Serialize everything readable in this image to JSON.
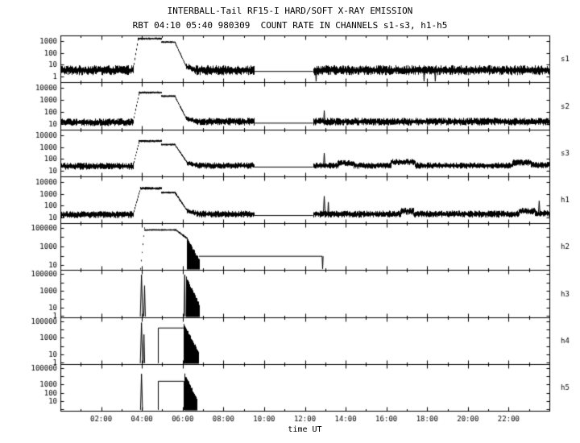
{
  "colors": {
    "background": "#ffffff",
    "ink": "#000000"
  },
  "chart_data": {
    "type": "line",
    "title": "INTERBALL-Tail RF15-I HARD/SOFT X-RAY EMISSION",
    "subtitle": "RBT 04:10 05:40 980309  COUNT RATE IN CHANNELS s1-s3, h1-h5",
    "y_scale": "log",
    "x_axis": {
      "label": "time UT",
      "range_hours": [
        0,
        24
      ],
      "ticks": [
        {
          "t": 2,
          "label": "02:00"
        },
        {
          "t": 4,
          "label": "04:00"
        },
        {
          "t": 6,
          "label": "06:00"
        },
        {
          "t": 8,
          "label": "08:00"
        },
        {
          "t": 10,
          "label": "10:00"
        },
        {
          "t": 12,
          "label": "12:00"
        },
        {
          "t": 14,
          "label": "14:00"
        },
        {
          "t": 16,
          "label": "16:00"
        },
        {
          "t": 18,
          "label": "18:00"
        },
        {
          "t": 20,
          "label": "20:00"
        },
        {
          "t": 22,
          "label": "22:00"
        }
      ]
    },
    "panels": [
      {
        "label": "s1",
        "ylog_range": [
          -0.5,
          3.5
        ],
        "yticks": [
          {
            "v": 1000,
            "label": "1000"
          },
          {
            "v": 100,
            "label": "100"
          },
          {
            "v": 10,
            "label": "10"
          },
          {
            "v": 1,
            "label": "1"
          }
        ],
        "segments": [
          {
            "mode": "noisy",
            "t0": 0,
            "t1": 3.55,
            "level": 0.55,
            "amp": 0.4
          },
          {
            "mode": "noisy",
            "t0": 3.55,
            "t1": 3.8,
            "level": 0.6,
            "level1": 3.2,
            "amp": 0.08
          },
          {
            "mode": "noisy",
            "t0": 3.8,
            "t1": 4.95,
            "level": 3.25,
            "amp": 0.07
          },
          {
            "mode": "noisy",
            "t0": 4.95,
            "t1": 5.6,
            "level": 2.95,
            "amp": 0.06
          },
          {
            "mode": "noisy",
            "t0": 5.6,
            "t1": 6.15,
            "level": 2.95,
            "level1": 0.9,
            "amp": 0.08
          },
          {
            "mode": "noisy",
            "t0": 6.15,
            "t1": 6.6,
            "level": 0.85,
            "level1": 0.6,
            "amp": 0.3
          },
          {
            "mode": "noisy",
            "t0": 6.6,
            "t1": 9.5,
            "level": 0.55,
            "amp": 0.4
          },
          {
            "mode": "line",
            "t0": 9.5,
            "t1": 12.4,
            "level": 0.42
          },
          {
            "mode": "noisy",
            "t0": 12.4,
            "t1": 24,
            "level": 0.55,
            "amp": 0.4
          }
        ],
        "spikes": [
          {
            "t": 12.55,
            "base": 0.5,
            "peak": -0.45,
            "w": 0.06
          },
          {
            "t": 17.85,
            "base": 0.5,
            "peak": -0.45,
            "w": 0.06
          },
          {
            "t": 18.4,
            "base": 0.5,
            "peak": -0.45,
            "w": 0.06
          }
        ]
      },
      {
        "label": "s2",
        "ylog_range": [
          0.5,
          4.5
        ],
        "yticks": [
          {
            "v": 10000,
            "label": "10000"
          },
          {
            "v": 1000,
            "label": "1000"
          },
          {
            "v": 100,
            "label": "100"
          },
          {
            "v": 10,
            "label": "10"
          }
        ],
        "segments": [
          {
            "mode": "noisy",
            "t0": 0,
            "t1": 3.55,
            "level": 1.15,
            "amp": 0.3
          },
          {
            "mode": "noisy",
            "t0": 3.55,
            "t1": 3.85,
            "level": 1.2,
            "level1": 3.6,
            "amp": 0.08
          },
          {
            "mode": "noisy",
            "t0": 3.85,
            "t1": 4.95,
            "level": 3.65,
            "amp": 0.07
          },
          {
            "mode": "noisy",
            "t0": 4.95,
            "t1": 5.6,
            "level": 3.35,
            "amp": 0.06
          },
          {
            "mode": "noisy",
            "t0": 5.6,
            "t1": 6.15,
            "level": 3.35,
            "level1": 1.5,
            "amp": 0.08
          },
          {
            "mode": "noisy",
            "t0": 6.15,
            "t1": 6.6,
            "level": 1.45,
            "level1": 1.25,
            "amp": 0.2
          },
          {
            "mode": "noisy",
            "t0": 6.6,
            "t1": 9.5,
            "level": 1.2,
            "amp": 0.3
          },
          {
            "mode": "line",
            "t0": 9.5,
            "t1": 12.4,
            "level": 1.05
          },
          {
            "mode": "noisy",
            "t0": 12.4,
            "t1": 24,
            "level": 1.2,
            "amp": 0.3
          }
        ],
        "spikes": [
          {
            "t": 12.95,
            "base": 1.2,
            "peak": 2.1,
            "w": 0.06
          }
        ]
      },
      {
        "label": "s3",
        "ylog_range": [
          0.5,
          4.5
        ],
        "yticks": [
          {
            "v": 10000,
            "label": "10000"
          },
          {
            "v": 1000,
            "label": "1000"
          },
          {
            "v": 100,
            "label": "100"
          },
          {
            "v": 10,
            "label": "10"
          }
        ],
        "segments": [
          {
            "mode": "noisy",
            "t0": 0,
            "t1": 3.55,
            "level": 1.4,
            "amp": 0.28
          },
          {
            "mode": "noisy",
            "t0": 3.55,
            "t1": 3.85,
            "level": 1.45,
            "level1": 3.5,
            "amp": 0.08
          },
          {
            "mode": "noisy",
            "t0": 3.85,
            "t1": 4.95,
            "level": 3.55,
            "amp": 0.08
          },
          {
            "mode": "noisy",
            "t0": 4.95,
            "t1": 5.6,
            "level": 3.25,
            "amp": 0.06
          },
          {
            "mode": "noisy",
            "t0": 5.6,
            "t1": 6.2,
            "level": 3.25,
            "level1": 1.7,
            "amp": 0.08
          },
          {
            "mode": "noisy",
            "t0": 6.2,
            "t1": 6.7,
            "level": 1.65,
            "level1": 1.5,
            "amp": 0.2
          },
          {
            "mode": "noisy",
            "t0": 6.7,
            "t1": 9.5,
            "level": 1.45,
            "amp": 0.25
          },
          {
            "mode": "line",
            "t0": 9.5,
            "t1": 12.4,
            "level": 1.3
          },
          {
            "mode": "noisy",
            "t0": 12.4,
            "t1": 13.6,
            "level": 1.45,
            "amp": 0.25
          },
          {
            "mode": "noisy",
            "t0": 13.6,
            "t1": 14.4,
            "level": 1.65,
            "amp": 0.25
          },
          {
            "mode": "noisy",
            "t0": 14.4,
            "t1": 16.2,
            "level": 1.45,
            "amp": 0.25
          },
          {
            "mode": "noisy",
            "t0": 16.2,
            "t1": 17.4,
            "level": 1.75,
            "amp": 0.25
          },
          {
            "mode": "noisy",
            "t0": 17.4,
            "t1": 22.2,
            "level": 1.45,
            "amp": 0.25
          },
          {
            "mode": "noisy",
            "t0": 22.2,
            "t1": 23.1,
            "level": 1.7,
            "amp": 0.25
          },
          {
            "mode": "noisy",
            "t0": 23.1,
            "t1": 24,
            "level": 1.5,
            "amp": 0.25
          }
        ],
        "spikes": [
          {
            "t": 12.95,
            "base": 1.5,
            "peak": 2.5,
            "w": 0.07
          }
        ]
      },
      {
        "label": "h1",
        "ylog_range": [
          0.5,
          4.5
        ],
        "yticks": [
          {
            "v": 10000,
            "label": "10000"
          },
          {
            "v": 1000,
            "label": "1000"
          },
          {
            "v": 100,
            "label": "100"
          },
          {
            "v": 10,
            "label": "10"
          }
        ],
        "segments": [
          {
            "mode": "noisy",
            "t0": 0,
            "t1": 3.55,
            "level": 1.25,
            "amp": 0.28
          },
          {
            "mode": "noisy",
            "t0": 3.55,
            "t1": 3.9,
            "level": 1.3,
            "level1": 3.4,
            "amp": 0.1
          },
          {
            "mode": "noisy",
            "t0": 3.9,
            "t1": 4.95,
            "level": 3.5,
            "amp": 0.1
          },
          {
            "mode": "noisy",
            "t0": 4.95,
            "t1": 5.6,
            "level": 3.15,
            "amp": 0.07
          },
          {
            "mode": "noisy",
            "t0": 5.6,
            "t1": 6.2,
            "level": 3.15,
            "level1": 1.6,
            "amp": 0.1
          },
          {
            "mode": "noisy",
            "t0": 6.2,
            "t1": 6.7,
            "level": 1.55,
            "level1": 1.35,
            "amp": 0.2
          },
          {
            "mode": "noisy",
            "t0": 6.7,
            "t1": 9.5,
            "level": 1.3,
            "amp": 0.28
          },
          {
            "mode": "line",
            "t0": 9.5,
            "t1": 12.4,
            "level": 1.15
          },
          {
            "mode": "noisy",
            "t0": 12.4,
            "t1": 16.7,
            "level": 1.3,
            "amp": 0.28
          },
          {
            "mode": "noisy",
            "t0": 16.7,
            "t1": 17.3,
            "level": 1.55,
            "amp": 0.28
          },
          {
            "mode": "noisy",
            "t0": 17.3,
            "t1": 22.5,
            "level": 1.3,
            "amp": 0.28
          },
          {
            "mode": "noisy",
            "t0": 22.5,
            "t1": 23.3,
            "level": 1.55,
            "amp": 0.28
          },
          {
            "mode": "noisy",
            "t0": 23.3,
            "t1": 24,
            "level": 1.35,
            "amp": 0.28
          }
        ],
        "spikes": [
          {
            "t": 12.95,
            "base": 1.3,
            "peak": 2.8,
            "w": 0.09
          },
          {
            "t": 13.15,
            "base": 1.3,
            "peak": 2.3,
            "w": 0.06
          },
          {
            "t": 23.5,
            "base": 1.4,
            "peak": 2.4,
            "w": 0.07
          }
        ]
      },
      {
        "label": "h2",
        "ylog_range": [
          0.5,
          5.5
        ],
        "yticks": [
          {
            "v": 100000,
            "label": "100000"
          },
          {
            "v": 1000,
            "label": "1000"
          },
          {
            "v": 10,
            "label": "10"
          }
        ],
        "segments": [
          {
            "mode": "noisy",
            "t0": 3.93,
            "t1": 4.1,
            "level": 1.0,
            "level1": 4.75,
            "amp": 0.05
          },
          {
            "mode": "noisy",
            "t0": 4.1,
            "t1": 5.65,
            "level": 4.8,
            "amp": 0.06
          },
          {
            "mode": "noisy",
            "t0": 5.65,
            "t1": 6.2,
            "level": 4.8,
            "level1": 3.9,
            "amp": 0.1
          },
          {
            "mode": "fill",
            "t0": 6.2,
            "t1": 6.8,
            "level": 3.9,
            "level1": 1.6
          },
          {
            "mode": "line",
            "t0": 6.8,
            "t1": 12.85,
            "level": 1.95
          }
        ],
        "spikes": [
          {
            "t": 12.87,
            "base": 1.95,
            "peak": 0.55,
            "w": 0.05
          }
        ]
      },
      {
        "label": "h3",
        "ylog_range": [
          -0.2,
          5.5
        ],
        "yticks": [
          {
            "v": 100000,
            "label": "100000"
          },
          {
            "v": 1000,
            "label": "1000"
          },
          {
            "v": 10,
            "label": "10"
          },
          {
            "v": 1,
            "label": "1"
          }
        ],
        "segments": [
          {
            "mode": "fill",
            "t0": 6.15,
            "t1": 6.8,
            "level": 4.7,
            "level1": 1.4
          }
        ],
        "spikes": [
          {
            "t": 3.98,
            "base": -0.2,
            "peak": 4.9,
            "w": 0.12
          },
          {
            "t": 4.13,
            "base": -0.2,
            "peak": 3.6,
            "w": 0.08
          },
          {
            "t": 6.1,
            "base": -0.2,
            "peak": 4.9,
            "w": 0.07
          }
        ]
      },
      {
        "label": "h4",
        "ylog_range": [
          -0.2,
          5.5
        ],
        "yticks": [
          {
            "v": 100000,
            "label": "100000"
          },
          {
            "v": 1000,
            "label": "1000"
          },
          {
            "v": 10,
            "label": "10"
          },
          {
            "v": 1,
            "label": "1"
          }
        ],
        "segments": [
          {
            "mode": "box",
            "t0": 4.8,
            "t1": 6.05,
            "level": 4.2
          },
          {
            "mode": "fill",
            "t0": 6.05,
            "t1": 6.75,
            "level": 4.6,
            "level1": 1.4
          }
        ],
        "spikes": [
          {
            "t": 3.98,
            "base": -0.2,
            "peak": 4.85,
            "w": 0.12
          },
          {
            "t": 4.1,
            "base": -0.2,
            "peak": 3.4,
            "w": 0.07
          }
        ]
      },
      {
        "label": "h5",
        "ylog_range": [
          -0.2,
          5.5
        ],
        "yticks": [
          {
            "v": 100000,
            "label": "100000"
          },
          {
            "v": 1000,
            "label": "1000"
          },
          {
            "v": 100,
            "label": "100"
          },
          {
            "v": 10,
            "label": "10"
          }
        ],
        "segments": [
          {
            "mode": "box",
            "t0": 4.8,
            "t1": 6.05,
            "level": 3.4
          },
          {
            "mode": "fill",
            "t0": 6.1,
            "t1": 6.7,
            "level": 4.2,
            "level1": 1.2
          }
        ],
        "spikes": [
          {
            "t": 3.98,
            "base": -0.2,
            "peak": 4.3,
            "w": 0.1
          }
        ]
      }
    ]
  }
}
